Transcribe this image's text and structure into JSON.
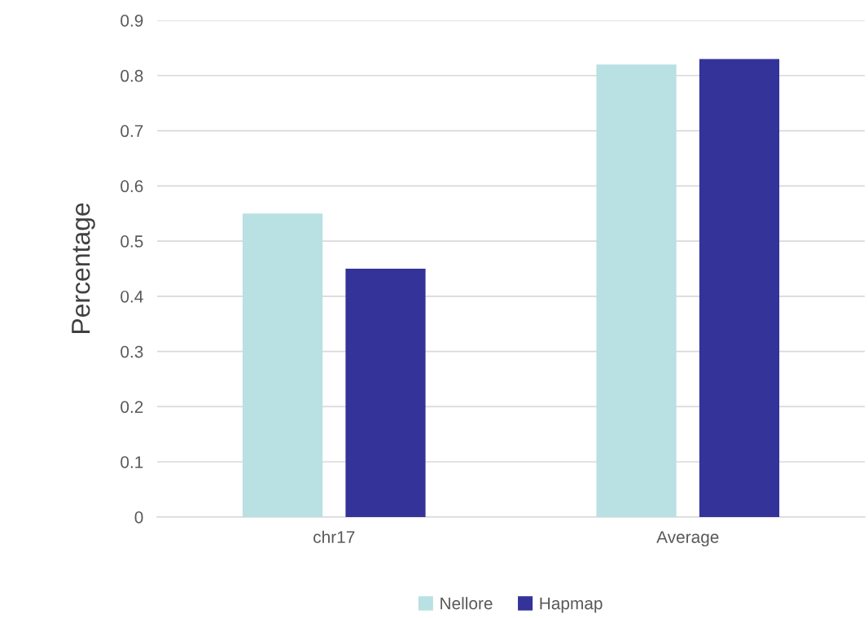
{
  "chart_data": {
    "type": "bar",
    "ylabel": "Percentage",
    "categories": [
      "chr17",
      "Average"
    ],
    "series": [
      {
        "name": "Nellore",
        "color": "#b9e0e2",
        "values": [
          0.55,
          0.82
        ]
      },
      {
        "name": "Hapmap",
        "color": "#333399",
        "values": [
          0.45,
          0.83
        ]
      }
    ],
    "ylim": [
      0,
      0.9
    ],
    "yticks": [
      0,
      0.1,
      0.2,
      0.3,
      0.4,
      0.5,
      0.6,
      0.7,
      0.8,
      0.9
    ],
    "grid": "y",
    "legend": "bottom"
  }
}
